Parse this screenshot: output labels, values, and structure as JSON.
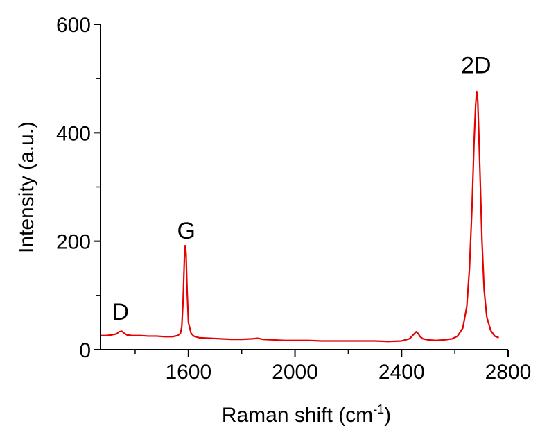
{
  "chart_data": {
    "type": "line",
    "xlabel": "Raman shift (cm",
    "xlabel_sup": "-1",
    "xlabel_end": ")",
    "ylabel": "Intensity (a.u.)",
    "xlim": [
      1270,
      2800
    ],
    "ylim": [
      0,
      600
    ],
    "xticks": [
      1600,
      2000,
      2400,
      2800
    ],
    "yticks": [
      0,
      200,
      400,
      600
    ],
    "grid": false,
    "line_color": "#e60000",
    "series": [
      {
        "x": [
          1270,
          1290,
          1310,
          1330,
          1340,
          1350,
          1360,
          1370,
          1390,
          1420,
          1450,
          1480,
          1510,
          1540,
          1560,
          1570,
          1575,
          1580,
          1585,
          1588,
          1591,
          1595,
          1600,
          1610,
          1620,
          1640,
          1680,
          1720,
          1760,
          1800,
          1840,
          1860,
          1880,
          1920,
          1960,
          2000,
          2050,
          2100,
          2150,
          2200,
          2250,
          2300,
          2350,
          2400,
          2430,
          2445,
          2455,
          2462,
          2470,
          2480,
          2500,
          2530,
          2560,
          2590,
          2610,
          2630,
          2645,
          2655,
          2665,
          2672,
          2678,
          2682,
          2686,
          2690,
          2696,
          2702,
          2710,
          2720,
          2735,
          2750,
          2765
        ],
        "y": [
          26,
          26,
          27,
          29,
          33,
          34,
          30,
          27,
          26,
          26,
          25,
          25,
          24,
          24,
          26,
          30,
          42,
          90,
          170,
          192,
          178,
          110,
          50,
          30,
          25,
          22,
          21,
          20,
          19,
          19,
          20,
          21,
          19,
          18,
          17,
          17,
          17,
          16,
          16,
          16,
          16,
          16,
          15,
          16,
          20,
          28,
          33,
          30,
          24,
          20,
          18,
          17,
          18,
          20,
          25,
          40,
          80,
          150,
          270,
          380,
          450,
          476,
          460,
          400,
          300,
          200,
          110,
          60,
          35,
          25,
          22
        ]
      }
    ],
    "annotations": [
      {
        "text": "D",
        "x": 1345,
        "y": 55
      },
      {
        "text": "G",
        "x": 1592,
        "y": 205
      },
      {
        "text": "2D",
        "x": 2680,
        "y": 510
      }
    ]
  }
}
